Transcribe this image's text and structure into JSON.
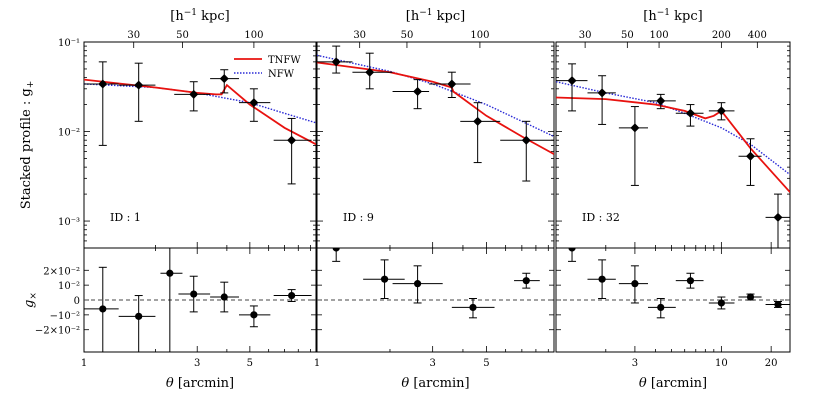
{
  "figure": {
    "ylabel_top": "Stacked profile : g",
    "ylabel_top_sub": "+",
    "ylabel_bottom": "g",
    "ylabel_bottom_sub": "×",
    "xlabel_symbol": "θ",
    "xlabel_unit": "[arcmin]",
    "top_axis_unit": "[h",
    "top_axis_unit_sup": "−1",
    "top_axis_unit_tail": " kpc]"
  },
  "legend": {
    "items": [
      {
        "label": "TNFW",
        "color": "#e8120f",
        "style": "solid"
      },
      {
        "label": "NFW",
        "color": "#2a2ad6",
        "style": "dotted"
      }
    ]
  },
  "colors": {
    "tnfw": "#e8120f",
    "nfw": "#2a2ad6",
    "points": "#000000",
    "zero_line": "#444444"
  },
  "chart_data": [
    {
      "type": "scatter",
      "panel_label": "ID : 1",
      "xscale": "log",
      "yscale": "log",
      "xlim": [
        1,
        9.5
      ],
      "ylim": [
        0.0005,
        0.1
      ],
      "x_ticks": [
        1,
        3,
        5
      ],
      "x_ticklabels": [
        "1",
        "3",
        "5"
      ],
      "y_ticks": [
        0.001,
        0.01,
        0.1
      ],
      "y_ticklabels": [
        "10⁻³",
        "10⁻²",
        "10⁻¹"
      ],
      "top_ticks": [
        1.62,
        2.6,
        5.2
      ],
      "top_ticklabels": [
        "30",
        "50",
        "100"
      ],
      "g_plus": {
        "x": [
          1.2,
          1.7,
          2.9,
          3.9,
          5.2,
          7.5
        ],
        "y": [
          0.034,
          0.033,
          0.026,
          0.039,
          0.021,
          0.008
        ],
        "yerr_low": [
          0.007,
          0.013,
          0.017,
          0.027,
          0.013,
          0.0026
        ],
        "yerr_high": [
          0.06,
          0.058,
          0.036,
          0.049,
          0.03,
          0.014
        ],
        "xerr_low": [
          1.0,
          1.4,
          2.4,
          3.4,
          4.5,
          6.3
        ],
        "xerr_high": [
          1.4,
          2.0,
          3.4,
          4.5,
          6.1,
          9.1
        ]
      },
      "g_cross": {
        "ylim": [
          -0.035,
          0.035
        ],
        "y_ticks": [
          -0.02,
          -0.01,
          0,
          0.01,
          0.02
        ],
        "y_ticklabels": [
          "−2×10⁻²",
          "−10⁻²",
          "0",
          "10⁻²",
          "2×10⁻²"
        ],
        "x": [
          1.2,
          1.7,
          2.3,
          2.9,
          3.9,
          5.2,
          7.5
        ],
        "y": [
          -0.006,
          -0.011,
          0.018,
          0.004,
          0.002,
          -0.01,
          0.003
        ],
        "yerr_low": [
          -0.035,
          -0.035,
          -0.035,
          -0.008,
          -0.008,
          -0.018,
          -0.001
        ],
        "yerr_high": [
          0.022,
          0.003,
          0.035,
          0.016,
          0.012,
          -0.004,
          0.007
        ],
        "xerr_low": [
          1.0,
          1.4,
          2.1,
          2.5,
          3.4,
          4.5,
          6.3
        ],
        "xerr_high": [
          1.4,
          2.0,
          2.6,
          3.4,
          4.5,
          6.1,
          9.1
        ]
      },
      "tnfw_model": {
        "x": [
          1,
          2,
          3,
          3.6,
          3.8,
          4.0,
          5,
          7,
          9.5
        ],
        "y": [
          0.038,
          0.031,
          0.027,
          0.026,
          0.026,
          0.033,
          0.02,
          0.011,
          0.0072
        ]
      },
      "nfw_model": {
        "x": [
          1,
          2,
          3,
          5,
          7,
          9.5
        ],
        "y": [
          0.034,
          0.031,
          0.027,
          0.021,
          0.016,
          0.0125
        ]
      }
    },
    {
      "type": "scatter",
      "panel_label": "ID : 9",
      "xscale": "log",
      "yscale": "log",
      "xlim": [
        1,
        9.5
      ],
      "ylim": [
        0.0005,
        0.1
      ],
      "x_ticks": [
        1,
        3,
        5
      ],
      "x_ticklabels": [
        "1",
        "3",
        "5"
      ],
      "top_ticks": [
        1.5,
        2.35,
        4.7
      ],
      "top_ticklabels": [
        "30",
        "50",
        "100"
      ],
      "g_plus": {
        "x": [
          1.2,
          1.65,
          2.6,
          3.6,
          4.6,
          7.3
        ],
        "y": [
          0.06,
          0.046,
          0.028,
          0.034,
          0.013,
          0.008
        ],
        "yerr_low": [
          0.045,
          0.03,
          0.018,
          0.024,
          0.0045,
          0.0028
        ],
        "yerr_high": [
          0.09,
          0.075,
          0.038,
          0.046,
          0.021,
          0.013
        ],
        "xerr_low": [
          1.0,
          1.4,
          2.05,
          2.9,
          3.9,
          5.7
        ],
        "xerr_high": [
          1.4,
          2.05,
          2.9,
          4.3,
          5.7,
          9.5
        ]
      },
      "g_cross": {
        "ylim": [
          -0.035,
          0.035
        ],
        "x": [
          1.2,
          1.9,
          2.6,
          4.4,
          7.3
        ],
        "y": [
          0.035,
          0.014,
          0.011,
          -0.005,
          0.013
        ],
        "yerr_low": [
          0.026,
          0.001,
          -0.002,
          -0.012,
          0.008
        ],
        "yerr_high": [
          0.035,
          0.027,
          0.023,
          0.001,
          0.018
        ],
        "xerr_low": [
          1.0,
          1.55,
          2.05,
          3.6,
          6.5
        ],
        "xerr_high": [
          1.4,
          2.3,
          3.3,
          5.4,
          8.3
        ]
      },
      "tnfw_model": {
        "x": [
          1,
          2,
          3,
          3.6,
          3.65,
          5,
          7,
          9.5
        ],
        "y": [
          0.059,
          0.046,
          0.036,
          0.031,
          0.028,
          0.015,
          0.0088,
          0.0056
        ]
      },
      "nfw_model": {
        "x": [
          1,
          2,
          3,
          5,
          7,
          9.5
        ],
        "y": [
          0.071,
          0.047,
          0.034,
          0.02,
          0.013,
          0.0088
        ]
      }
    },
    {
      "type": "scatter",
      "panel_label": "ID : 32",
      "xscale": "log",
      "yscale": "log",
      "xlim": [
        1,
        26
      ],
      "ylim": [
        0.0005,
        0.1
      ],
      "x_ticks": [
        3,
        10,
        20
      ],
      "x_ticklabels": [
        "3",
        "10",
        "20"
      ],
      "top_ticks": [
        1.5,
        2.7,
        4.2,
        10,
        16.5
      ],
      "top_ticklabels": [
        "30",
        "50",
        "100",
        "200",
        "400"
      ],
      "g_plus": {
        "x": [
          1.25,
          1.9,
          3.0,
          4.3,
          6.5,
          10.0,
          15.0,
          22.0
        ],
        "y": [
          0.037,
          0.027,
          0.011,
          0.022,
          0.016,
          0.017,
          0.0053,
          0.0011
        ],
        "yerr_low": [
          0.017,
          0.012,
          0.0025,
          0.018,
          0.0115,
          0.0135,
          0.0025,
          0.0004
        ],
        "yerr_high": [
          0.057,
          0.042,
          0.019,
          0.026,
          0.02,
          0.021,
          0.0083,
          0.002
        ],
        "xerr_low": [
          1.0,
          1.55,
          2.4,
          3.6,
          5.3,
          8.4,
          12.7,
          18.5
        ],
        "xerr_high": [
          1.55,
          2.3,
          3.6,
          5.3,
          7.8,
          12.0,
          17.5,
          26.0
        ]
      },
      "g_cross": {
        "ylim": [
          -0.035,
          0.035
        ],
        "x": [
          1.25,
          1.9,
          3.0,
          4.3,
          6.5,
          10.0,
          15.0,
          22.0
        ],
        "y": [
          0.035,
          0.014,
          0.011,
          -0.005,
          0.013,
          -0.002,
          0.002,
          -0.003
        ],
        "yerr_low": [
          0.026,
          0.001,
          -0.002,
          -0.012,
          0.008,
          -0.006,
          0.0,
          -0.005
        ],
        "yerr_high": [
          0.035,
          0.027,
          0.023,
          0.001,
          0.018,
          0.002,
          0.004,
          -0.001
        ],
        "xerr_low": [
          1.0,
          1.55,
          2.4,
          3.6,
          5.3,
          8.4,
          12.7,
          18.5
        ],
        "xerr_high": [
          1.55,
          2.3,
          3.6,
          5.3,
          7.8,
          12.0,
          17.5,
          26.0
        ]
      },
      "tnfw_model": {
        "x": [
          1,
          2,
          4,
          6,
          8,
          9,
          10,
          15,
          26
        ],
        "y": [
          0.024,
          0.023,
          0.02,
          0.017,
          0.014,
          0.015,
          0.017,
          0.0065,
          0.0021
        ]
      },
      "nfw_model": {
        "x": [
          1,
          2,
          4,
          6,
          10,
          15,
          26
        ],
        "y": [
          0.036,
          0.027,
          0.021,
          0.016,
          0.011,
          0.0072,
          0.0033
        ]
      }
    }
  ]
}
